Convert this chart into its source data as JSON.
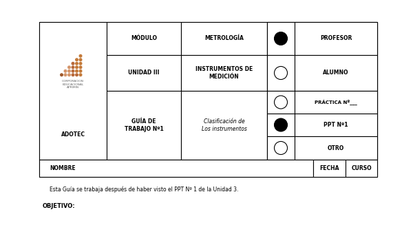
{
  "bg_color": "#ffffff",
  "border_color": "#000000",
  "cells": {
    "modulo_label": "MÓDULO",
    "modulo_value": "METROLOGÍA",
    "unidad_label": "UNIDAD III",
    "unidad_value": "INSTRUMENTOS DE\nMEDICIÓN",
    "guia_label": "GUÍA DE\nTRABAJO Nº1",
    "guia_value": "Clasificación de\nLos instrumentos",
    "profesor_label": "PROFESOR",
    "alumno_label": "ALUMNO",
    "practica_label": "PRÁCTICA Nº___",
    "ppt_label": "PPT Nº1",
    "otro_label": "OTRO",
    "nombre_label": "NOMBRE",
    "fecha_label": "FECHA",
    "curso_label": "CURSO",
    "adotec_label": "ADOTEC"
  },
  "footer_text": "Esta Guía se trabaja después de haber visto el PPT Nº 1 de la Unidad 3.",
  "objetivo_text": "OBJETIVO:",
  "logo_colors": [
    "#c47a3a",
    "#b8693a",
    "#d4956a",
    "#a05a2c",
    "#c8845a"
  ],
  "logo_text": "CORPORACION\nEDUCACIONAL\nAPRIMIN"
}
